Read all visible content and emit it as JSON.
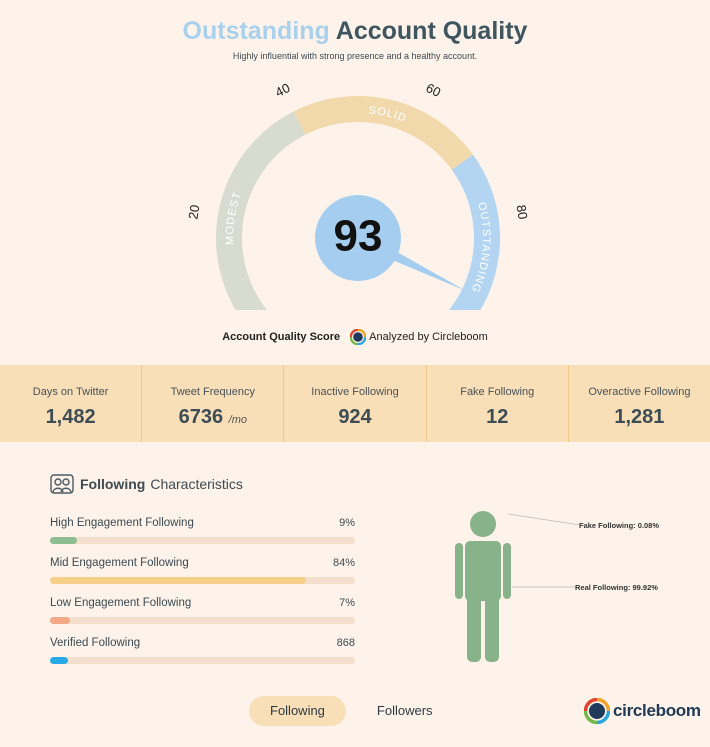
{
  "header": {
    "title_accent": "Outstanding",
    "title_rest": " Account Quality",
    "subtitle": "Highly influential with strong presence and a healthy account."
  },
  "gauge": {
    "score": 93,
    "min": 0,
    "max": 100,
    "ticks": [
      "0",
      "20",
      "40",
      "60",
      "80",
      "100"
    ],
    "segments": [
      {
        "label": "MODEST",
        "from": 0,
        "to": 40,
        "color": "#d8dcd0"
      },
      {
        "label": "SOLID",
        "from": 40,
        "to": 70,
        "color": "#f2d9ac"
      },
      {
        "label": "OUTSTANDING",
        "from": 70,
        "to": 100,
        "color": "#b3d5f1"
      }
    ],
    "needle_color": "#a5cdef",
    "score_label": "Account Quality Score",
    "analyzed_by": "Analyzed by Circleboom"
  },
  "stats": [
    {
      "label": "Days on Twitter",
      "value": "1,482",
      "unit": ""
    },
    {
      "label": "Tweet Frequency",
      "value": "6736",
      "unit": "/mo"
    },
    {
      "label": "Inactive Following",
      "value": "924",
      "unit": ""
    },
    {
      "label": "Fake Following",
      "value": "12",
      "unit": ""
    },
    {
      "label": "Overactive Following",
      "value": "1,281",
      "unit": ""
    }
  ],
  "following": {
    "heading_bold": "Following",
    "heading_normal": "Characteristics",
    "icon": "users-icon",
    "bars": [
      {
        "label": "High Engagement Following",
        "value": "9%",
        "fraction": 0.09,
        "color": "#8fbd92"
      },
      {
        "label": "Mid Engagement Following",
        "value": "84%",
        "fraction": 0.84,
        "color": "#f6cf8b"
      },
      {
        "label": "Low Engagement Following",
        "value": "7%",
        "fraction": 0.065,
        "color": "#f3a886"
      },
      {
        "label": "Verified Following",
        "value": "868",
        "fraction": 0.06,
        "color": "#28a9e6"
      }
    ],
    "figure": {
      "fake_label": "Fake Following: 0.08%",
      "real_label": "Real Following: 99.92%",
      "color": "#88b38a"
    }
  },
  "tabs": {
    "active": "Following",
    "inactive": "Followers"
  },
  "brand": {
    "name": "circleboom"
  }
}
